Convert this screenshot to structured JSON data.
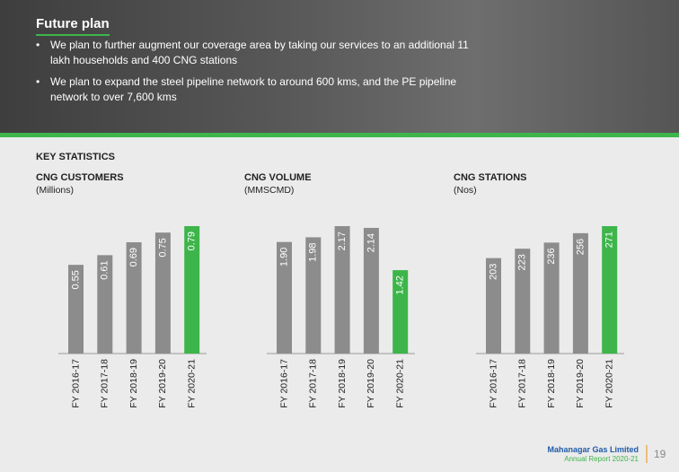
{
  "header": {
    "title": "Future plan",
    "bullets": [
      "We plan to further augment our coverage area by taking our services to an additional 11 lakh households and 400 CNG stations",
      "We plan to expand the steel pipeline network to around 600 kms, and the PE pipeline network to over 7,600 kms"
    ]
  },
  "section_title": "KEY STATISTICS",
  "chart_data": [
    {
      "type": "bar",
      "title": "CNG CUSTOMERS",
      "subtitle": "(Millions)",
      "categories": [
        "FY 2016-17",
        "FY 2017-18",
        "FY 2018-19",
        "FY 2019-20",
        "FY 2020-21"
      ],
      "values": [
        0.55,
        0.61,
        0.69,
        0.75,
        0.79
      ],
      "colors": [
        "#8c8c8c",
        "#8c8c8c",
        "#8c8c8c",
        "#8c8c8c",
        "#3db54a"
      ]
    },
    {
      "type": "bar",
      "title": "CNG VOLUME",
      "subtitle": "(MMSCMD)",
      "categories": [
        "FY 2016-17",
        "FY 2017-18",
        "FY 2018-19",
        "FY 2019-20",
        "FY 2020-21"
      ],
      "values": [
        1.9,
        1.98,
        2.17,
        2.14,
        1.42
      ],
      "value_labels": [
        "1.90",
        "1.98",
        "2.17",
        "2.14",
        "1.42"
      ],
      "colors": [
        "#8c8c8c",
        "#8c8c8c",
        "#8c8c8c",
        "#8c8c8c",
        "#3db54a"
      ]
    },
    {
      "type": "bar",
      "title": "CNG STATIONS",
      "subtitle": "(Nos)",
      "categories": [
        "FY 2016-17",
        "FY 2017-18",
        "FY 2018-19",
        "FY 2019-20",
        "FY 2020-21"
      ],
      "values": [
        203,
        223,
        236,
        256,
        271
      ],
      "colors": [
        "#8c8c8c",
        "#8c8c8c",
        "#8c8c8c",
        "#8c8c8c",
        "#3db54a"
      ]
    }
  ],
  "footer": {
    "company": "Mahanagar Gas Limited",
    "report": "Annual Report 2020-21",
    "page": "19"
  }
}
